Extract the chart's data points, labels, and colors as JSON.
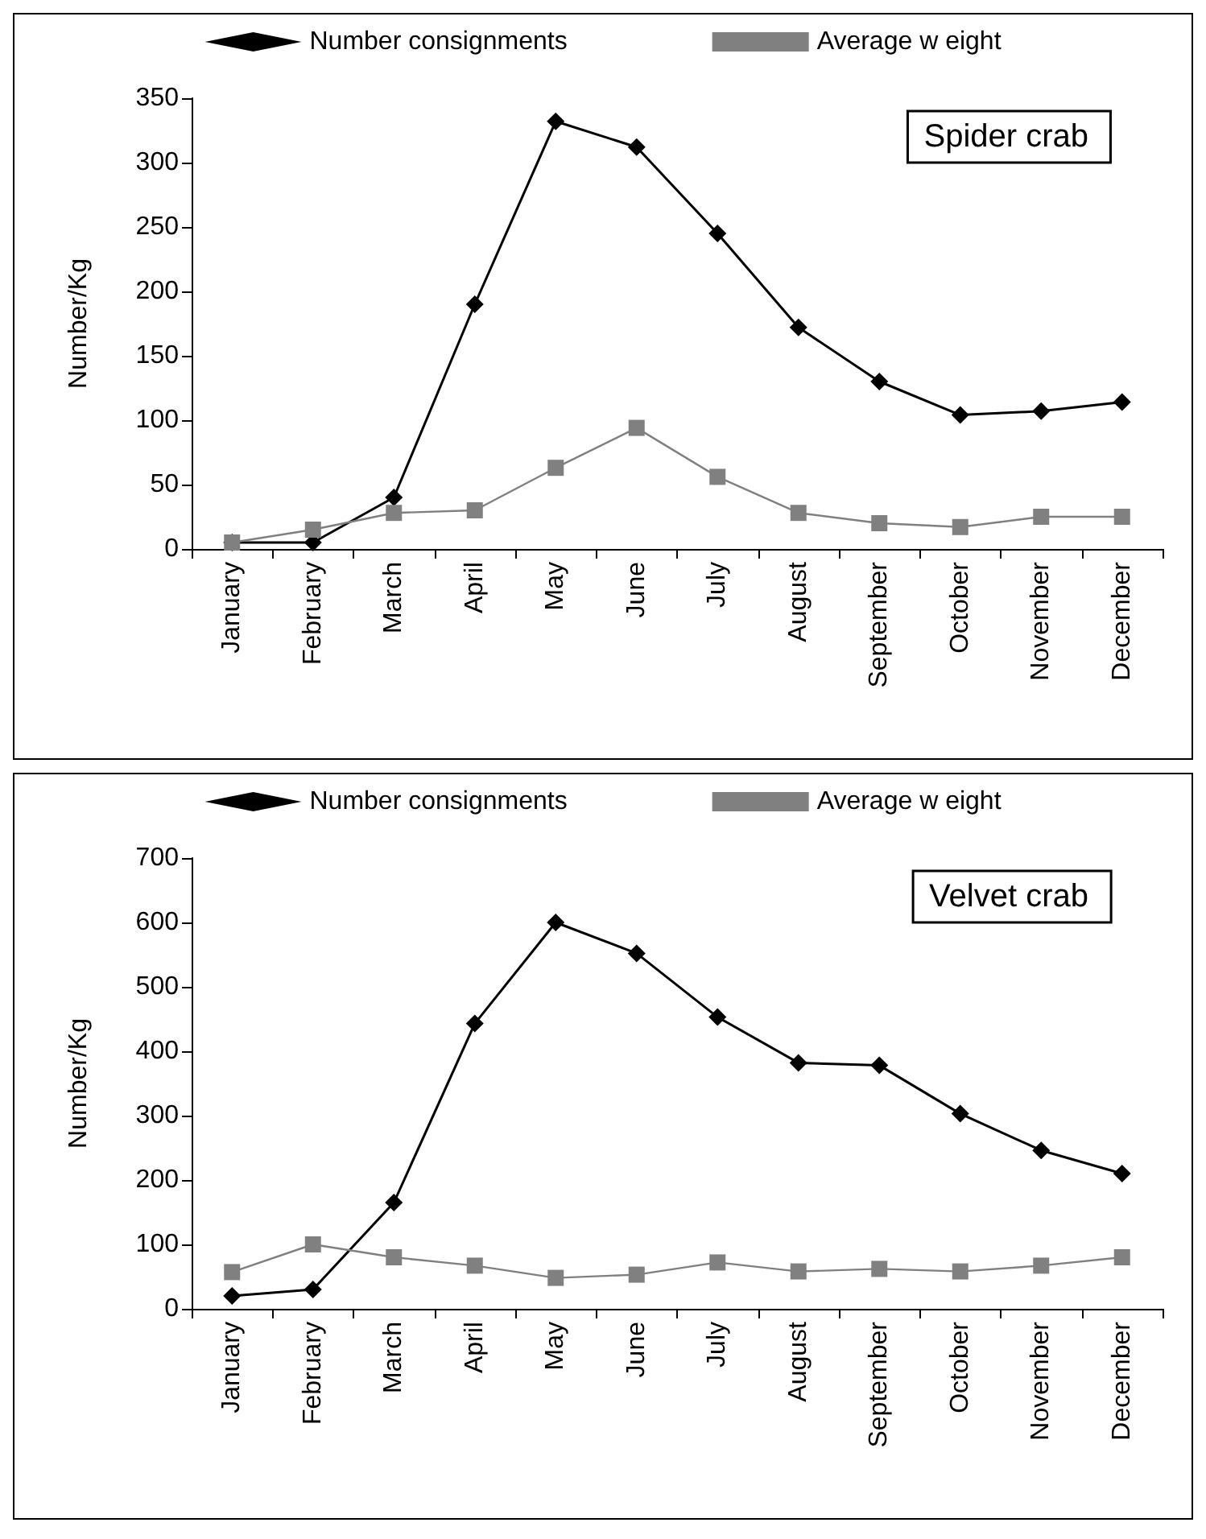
{
  "chart_data": [
    {
      "type": "line",
      "title": "Spider crab",
      "ylabel": "Number/Kg",
      "categories": [
        "January",
        "February",
        "March",
        "April",
        "May",
        "June",
        "July",
        "August",
        "September",
        "October",
        "November",
        "December"
      ],
      "series": [
        {
          "name": "Number consignments",
          "color": "#000000",
          "marker": "diamond",
          "values": [
            5,
            5,
            40,
            190,
            332,
            312,
            245,
            172,
            130,
            104,
            107,
            114
          ]
        },
        {
          "name": "Average w eight",
          "color": "#808080",
          "marker": "square",
          "values": [
            5,
            15,
            28,
            30,
            63,
            94,
            56,
            28,
            20,
            17,
            25,
            25
          ]
        }
      ],
      "ylim": [
        0,
        350
      ],
      "yticks": [
        0,
        50,
        100,
        150,
        200,
        250,
        300,
        350
      ],
      "grid": false,
      "legend": "top"
    },
    {
      "type": "line",
      "title": "Velvet crab",
      "ylabel": "Number/Kg",
      "categories": [
        "January",
        "February",
        "March",
        "April",
        "May",
        "June",
        "July",
        "August",
        "September",
        "October",
        "November",
        "December"
      ],
      "series": [
        {
          "name": "Number consignments",
          "color": "#000000",
          "marker": "diamond",
          "values": [
            20,
            30,
            165,
            443,
            600,
            552,
            453,
            382,
            378,
            303,
            246,
            210
          ]
        },
        {
          "name": "Average w eight",
          "color": "#808080",
          "marker": "square",
          "values": [
            57,
            100,
            80,
            67,
            48,
            53,
            72,
            58,
            62,
            58,
            67,
            80
          ]
        }
      ],
      "ylim": [
        0,
        700
      ],
      "yticks": [
        0,
        100,
        200,
        300,
        400,
        500,
        600,
        700
      ],
      "grid": false,
      "legend": "top"
    }
  ]
}
